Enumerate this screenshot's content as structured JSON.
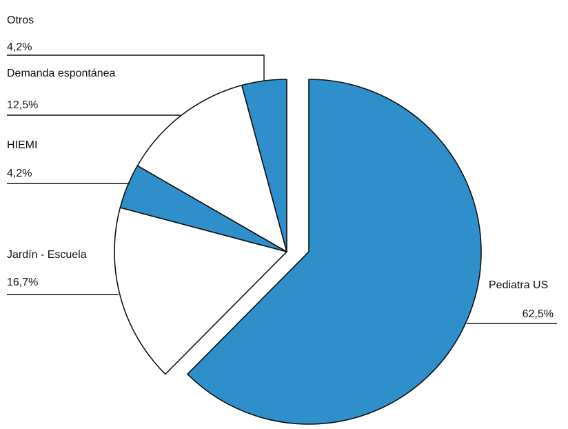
{
  "chart_data": {
    "type": "pie",
    "slices": [
      {
        "label": "Pediatra US",
        "value": 62.5,
        "value_label": "62,5%",
        "color": "#2f8fcb",
        "exploded": true
      },
      {
        "label": "Jardín - Escuela",
        "value": 16.7,
        "value_label": "16,7%",
        "color": "#ffffff",
        "exploded": false
      },
      {
        "label": "HIEMI",
        "value": 4.2,
        "value_label": "4,2%",
        "color": "#2f8fcb",
        "exploded": false
      },
      {
        "label": "Demanda espontánea",
        "value": 12.5,
        "value_label": "12,5%",
        "color": "#ffffff",
        "exploded": false
      },
      {
        "label": "Otros",
        "value": 4.2,
        "value_label": "4,2%",
        "color": "#2f8fcb",
        "exploded": false
      }
    ],
    "start_angle": "12 o'clock",
    "direction": "clockwise",
    "legend": "none",
    "title": ""
  }
}
